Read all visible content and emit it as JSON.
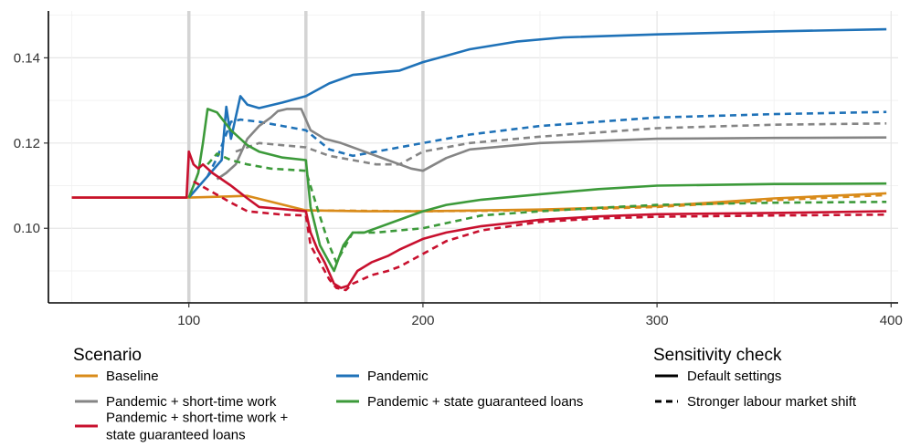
{
  "chart_data": {
    "type": "line",
    "xlim": [
      40,
      403
    ],
    "ylim": [
      0.0825,
      0.151
    ],
    "x_ticks": [
      100,
      200,
      300,
      400
    ],
    "x_tick_labels": [
      "100",
      "200",
      "300",
      "400"
    ],
    "y_ticks": [
      0.1,
      0.12,
      0.14
    ],
    "y_tick_labels": [
      "0.10",
      "0.12",
      "0.14"
    ],
    "xlabel": "",
    "ylabel": "",
    "vertical_markers": [
      100,
      150,
      200
    ],
    "grid": true,
    "legend_placement": "bottom",
    "legends": [
      {
        "title": "Scenario",
        "entries": [
          {
            "label": "Baseline",
            "color": "#d98b1a"
          },
          {
            "label": "Pandemic",
            "color": "#1f72b8"
          },
          {
            "label": "Pandemic + short-time work",
            "color": "#858585"
          },
          {
            "label": "Pandemic + state guaranteed loans",
            "color": "#3c9a3a"
          },
          {
            "label_lines": [
              "Pandemic + short-time work +",
              "state guaranteed loans"
            ],
            "color": "#c8102e"
          }
        ]
      },
      {
        "title": "Sensitivity check",
        "entries": [
          {
            "label": "Default settings",
            "dash": "solid"
          },
          {
            "label": "Stronger labour market shift",
            "dash": "dashed"
          }
        ]
      }
    ],
    "series": [
      {
        "key": "baseline",
        "scenario": "Baseline",
        "style": "solid",
        "color": "#d98b1a",
        "points": [
          [
            50,
            0.1072
          ],
          [
            100,
            0.1072
          ],
          [
            125,
            0.1076
          ],
          [
            150,
            0.1042
          ],
          [
            175,
            0.104
          ],
          [
            200,
            0.104
          ],
          [
            250,
            0.1044
          ],
          [
            300,
            0.1052
          ],
          [
            350,
            0.107
          ],
          [
            398,
            0.1082
          ]
        ]
      },
      {
        "key": "baseline_dashed",
        "scenario": "Baseline",
        "style": "dashed",
        "color": "#d98b1a",
        "points": [
          [
            150,
            0.1042
          ],
          [
            200,
            0.104
          ],
          [
            250,
            0.1042
          ],
          [
            300,
            0.105
          ],
          [
            350,
            0.1066
          ],
          [
            398,
            0.1078
          ]
        ]
      },
      {
        "key": "pandemic",
        "scenario": "Pandemic",
        "style": "solid",
        "color": "#1f72b8",
        "points": [
          [
            100,
            0.1072
          ],
          [
            108,
            0.1122
          ],
          [
            114,
            0.116
          ],
          [
            116,
            0.1285
          ],
          [
            118,
            0.121
          ],
          [
            122,
            0.131
          ],
          [
            125,
            0.129
          ],
          [
            130,
            0.1282
          ],
          [
            140,
            0.1295
          ],
          [
            150,
            0.131
          ],
          [
            160,
            0.134
          ],
          [
            170,
            0.136
          ],
          [
            180,
            0.1365
          ],
          [
            190,
            0.137
          ],
          [
            200,
            0.139
          ],
          [
            210,
            0.1405
          ],
          [
            220,
            0.142
          ],
          [
            240,
            0.1438
          ],
          [
            260,
            0.1448
          ],
          [
            300,
            0.1455
          ],
          [
            350,
            0.1462
          ],
          [
            398,
            0.1467
          ]
        ]
      },
      {
        "key": "pandemic_dashed",
        "scenario": "Pandemic",
        "style": "dashed",
        "color": "#1f72b8",
        "points": [
          [
            108,
            0.1122
          ],
          [
            112,
            0.1165
          ],
          [
            118,
            0.125
          ],
          [
            122,
            0.1255
          ],
          [
            130,
            0.125
          ],
          [
            140,
            0.124
          ],
          [
            150,
            0.123
          ],
          [
            160,
            0.1185
          ],
          [
            170,
            0.117
          ],
          [
            180,
            0.118
          ],
          [
            200,
            0.12
          ],
          [
            220,
            0.122
          ],
          [
            250,
            0.124
          ],
          [
            300,
            0.126
          ],
          [
            350,
            0.1268
          ],
          [
            398,
            0.1273
          ]
        ]
      },
      {
        "key": "stw",
        "scenario": "Pandemic + short-time work",
        "style": "solid",
        "color": "#858585",
        "points": [
          [
            112,
            0.1115
          ],
          [
            116,
            0.113
          ],
          [
            120,
            0.115
          ],
          [
            125,
            0.121
          ],
          [
            130,
            0.124
          ],
          [
            135,
            0.126
          ],
          [
            138,
            0.1275
          ],
          [
            142,
            0.128
          ],
          [
            148,
            0.128
          ],
          [
            152,
            0.123
          ],
          [
            158,
            0.121
          ],
          [
            165,
            0.12
          ],
          [
            175,
            0.118
          ],
          [
            185,
            0.116
          ],
          [
            195,
            0.114
          ],
          [
            200,
            0.1135
          ],
          [
            210,
            0.1165
          ],
          [
            220,
            0.1185
          ],
          [
            250,
            0.12
          ],
          [
            300,
            0.121
          ],
          [
            350,
            0.1212
          ],
          [
            398,
            0.1213
          ]
        ]
      },
      {
        "key": "stw_dashed",
        "scenario": "Pandemic + short-time work",
        "style": "dashed",
        "color": "#858585",
        "points": [
          [
            120,
            0.118
          ],
          [
            130,
            0.12
          ],
          [
            140,
            0.1195
          ],
          [
            150,
            0.119
          ],
          [
            160,
            0.117
          ],
          [
            170,
            0.116
          ],
          [
            180,
            0.115
          ],
          [
            190,
            0.115
          ],
          [
            200,
            0.118
          ],
          [
            220,
            0.12
          ],
          [
            250,
            0.1215
          ],
          [
            300,
            0.1235
          ],
          [
            350,
            0.1243
          ],
          [
            398,
            0.1246
          ]
        ]
      },
      {
        "key": "loans",
        "scenario": "Pandemic + state guaranteed loans",
        "style": "solid",
        "color": "#3c9a3a",
        "points": [
          [
            100,
            0.1072
          ],
          [
            102,
            0.11
          ],
          [
            104,
            0.113
          ],
          [
            106,
            0.12
          ],
          [
            108,
            0.128
          ],
          [
            112,
            0.1272
          ],
          [
            118,
            0.123
          ],
          [
            125,
            0.1195
          ],
          [
            130,
            0.118
          ],
          [
            140,
            0.1166
          ],
          [
            150,
            0.116
          ],
          [
            152,
            0.105
          ],
          [
            156,
            0.096
          ],
          [
            160,
            0.092
          ],
          [
            162,
            0.09
          ],
          [
            166,
            0.096
          ],
          [
            170,
            0.099
          ],
          [
            175,
            0.099
          ],
          [
            180,
            0.1
          ],
          [
            190,
            0.102
          ],
          [
            200,
            0.104
          ],
          [
            210,
            0.1055
          ],
          [
            225,
            0.1067
          ],
          [
            250,
            0.108
          ],
          [
            275,
            0.1092
          ],
          [
            300,
            0.11
          ],
          [
            350,
            0.1104
          ],
          [
            398,
            0.1105
          ]
        ]
      },
      {
        "key": "loans_dashed",
        "scenario": "Pandemic + state guaranteed loans",
        "style": "dashed",
        "color": "#3c9a3a",
        "points": [
          [
            108,
            0.115
          ],
          [
            112,
            0.1175
          ],
          [
            118,
            0.116
          ],
          [
            125,
            0.115
          ],
          [
            135,
            0.114
          ],
          [
            150,
            0.1135
          ],
          [
            155,
            0.1045
          ],
          [
            160,
            0.096
          ],
          [
            163,
            0.092
          ],
          [
            167,
            0.096
          ],
          [
            170,
            0.099
          ],
          [
            180,
            0.099
          ],
          [
            200,
            0.1
          ],
          [
            225,
            0.103
          ],
          [
            250,
            0.104
          ],
          [
            275,
            0.1048
          ],
          [
            300,
            0.1055
          ],
          [
            350,
            0.106
          ],
          [
            398,
            0.1062
          ]
        ]
      },
      {
        "key": "stw_loans",
        "scenario": "Pandemic + short-time work + state guaranteed loans",
        "style": "solid",
        "color": "#c8102e",
        "points": [
          [
            50,
            0.1072
          ],
          [
            99,
            0.1072
          ],
          [
            100,
            0.118
          ],
          [
            102,
            0.115
          ],
          [
            104,
            0.114
          ],
          [
            106,
            0.115
          ],
          [
            110,
            0.113
          ],
          [
            114,
            0.1115
          ],
          [
            118,
            0.11
          ],
          [
            125,
            0.107
          ],
          [
            130,
            0.105
          ],
          [
            140,
            0.1045
          ],
          [
            150,
            0.104
          ],
          [
            152,
            0.099
          ],
          [
            155,
            0.095
          ],
          [
            158,
            0.092
          ],
          [
            162,
            0.087
          ],
          [
            165,
            0.086
          ],
          [
            168,
            0.0865
          ],
          [
            172,
            0.09
          ],
          [
            178,
            0.092
          ],
          [
            185,
            0.0935
          ],
          [
            190,
            0.095
          ],
          [
            200,
            0.0975
          ],
          [
            210,
            0.099
          ],
          [
            225,
            0.1005
          ],
          [
            250,
            0.102
          ],
          [
            275,
            0.1028
          ],
          [
            300,
            0.1033
          ],
          [
            350,
            0.1036
          ],
          [
            398,
            0.104
          ]
        ]
      },
      {
        "key": "stw_loans_dashed",
        "scenario": "Pandemic + short-time work + state guaranteed loans",
        "style": "dashed",
        "color": "#c8102e",
        "points": [
          [
            102,
            0.111
          ],
          [
            110,
            0.1085
          ],
          [
            118,
            0.106
          ],
          [
            125,
            0.104
          ],
          [
            140,
            0.1032
          ],
          [
            150,
            0.103
          ],
          [
            152,
            0.096
          ],
          [
            156,
            0.092
          ],
          [
            160,
            0.088
          ],
          [
            163,
            0.086
          ],
          [
            167,
            0.0855
          ],
          [
            170,
            0.087
          ],
          [
            178,
            0.089
          ],
          [
            185,
            0.09
          ],
          [
            190,
            0.091
          ],
          [
            200,
            0.094
          ],
          [
            210,
            0.097
          ],
          [
            225,
            0.0995
          ],
          [
            250,
            0.1015
          ],
          [
            275,
            0.1023
          ],
          [
            300,
            0.1027
          ],
          [
            350,
            0.103
          ],
          [
            398,
            0.1032
          ]
        ]
      }
    ]
  }
}
